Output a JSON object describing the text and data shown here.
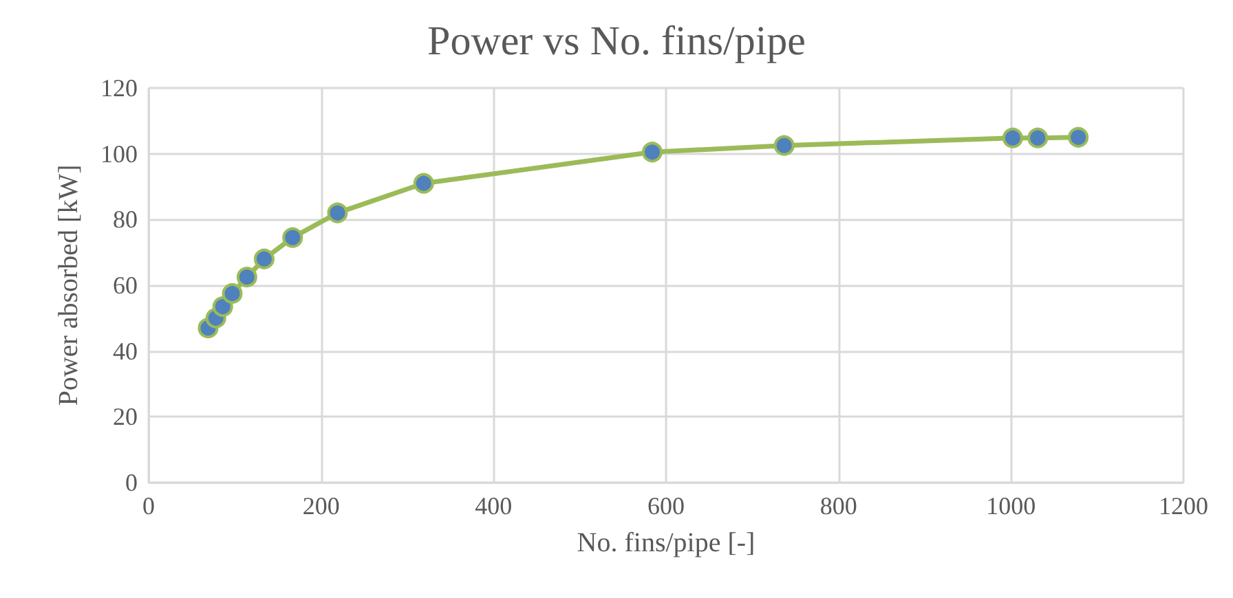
{
  "chart_data": {
    "type": "line",
    "title": "Power vs No. fins/pipe",
    "xlabel": "No. fins/pipe [-]",
    "ylabel": "Power absorbed [kW]",
    "x": [
      69,
      78,
      86,
      97,
      114,
      134,
      167,
      219,
      319,
      584,
      737,
      1002,
      1031,
      1078
    ],
    "series": [
      {
        "color": "#9bbb59",
        "values": [
          47,
          50,
          53.5,
          57.5,
          62.5,
          68,
          74.5,
          82,
          91,
          100.5,
          102.5,
          104.8,
          104.8,
          105
        ]
      }
    ],
    "xlim": [
      0,
      1200
    ],
    "xticks": [
      0,
      200,
      400,
      600,
      800,
      1000,
      1200
    ],
    "ylim": [
      0,
      120
    ],
    "yticks": [
      0,
      20,
      40,
      60,
      80,
      100,
      120
    ],
    "grid": true,
    "marker": "circle",
    "line_style": "solid"
  }
}
